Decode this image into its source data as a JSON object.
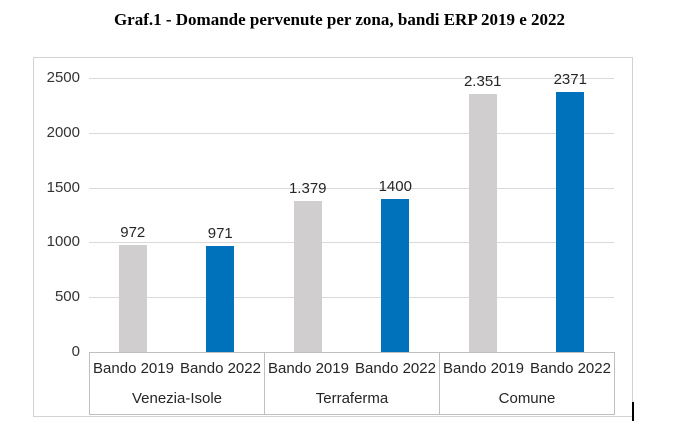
{
  "title": "Graf.1 - Domande pervenute per zona, bandi ERP 2019 e 2022",
  "chart_data": {
    "type": "bar",
    "title": "Graf.1 - Domande pervenute per zona, bandi ERP 2019 e 2022",
    "groups": [
      "Venezia-Isole",
      "Terraferma",
      "Comune"
    ],
    "subcategories": [
      "Bando 2019",
      "Bando 2022"
    ],
    "series": [
      {
        "name": "Bando 2019",
        "color": "#D0CECE",
        "values": [
          972,
          1379,
          2351
        ],
        "labels": [
          "972",
          "1.379",
          "2.351"
        ]
      },
      {
        "name": "Bando 2022",
        "color": "#0072BC",
        "values": [
          971,
          1400,
          2371
        ],
        "labels": [
          "971",
          "1400",
          "2371"
        ]
      }
    ],
    "ylim": [
      0,
      2500
    ],
    "ytick_interval": 500,
    "yticks": [
      "0",
      "500",
      "1000",
      "1500",
      "2000",
      "2500"
    ],
    "grid": true,
    "legend_position": "none",
    "colors": {
      "bar_2019": "#D0CECE",
      "bar_2022": "#0072BC",
      "gridline": "#D9D9D9",
      "axis_line": "#BFBFBF",
      "chart_border": "#D2D2D2",
      "label_text": "#262626"
    }
  }
}
